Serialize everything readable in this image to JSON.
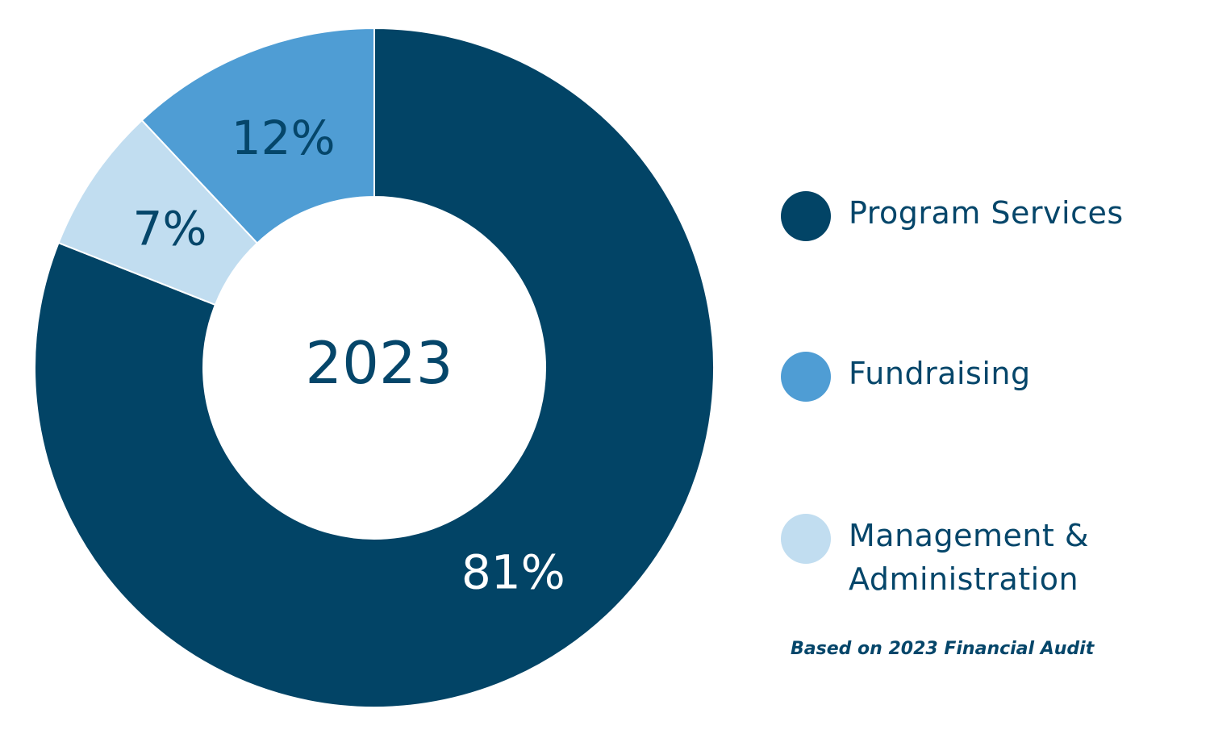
{
  "chart_data": {
    "type": "pie",
    "center_label": "2023",
    "slices": [
      {
        "name": "Program Services",
        "value": 81,
        "label": "81%",
        "color": "#024466"
      },
      {
        "name": "Management & Administration",
        "value": 7,
        "label": "7%",
        "color": "#c1ddf0"
      },
      {
        "name": "Fundraising",
        "value": 12,
        "label": "12%",
        "color": "#4f9dd4"
      }
    ],
    "legend": [
      {
        "name": "Program Services",
        "color": "#024466"
      },
      {
        "name": "Fundraising",
        "color": "#4f9dd4"
      },
      {
        "name": "Management & Administration",
        "color": "#c1ddf0"
      }
    ],
    "legend_position": "right",
    "footnote": "Based on 2023 Financial Audit"
  },
  "colors": {
    "text_dark": "#05466a",
    "label_light": "#ffffff"
  }
}
